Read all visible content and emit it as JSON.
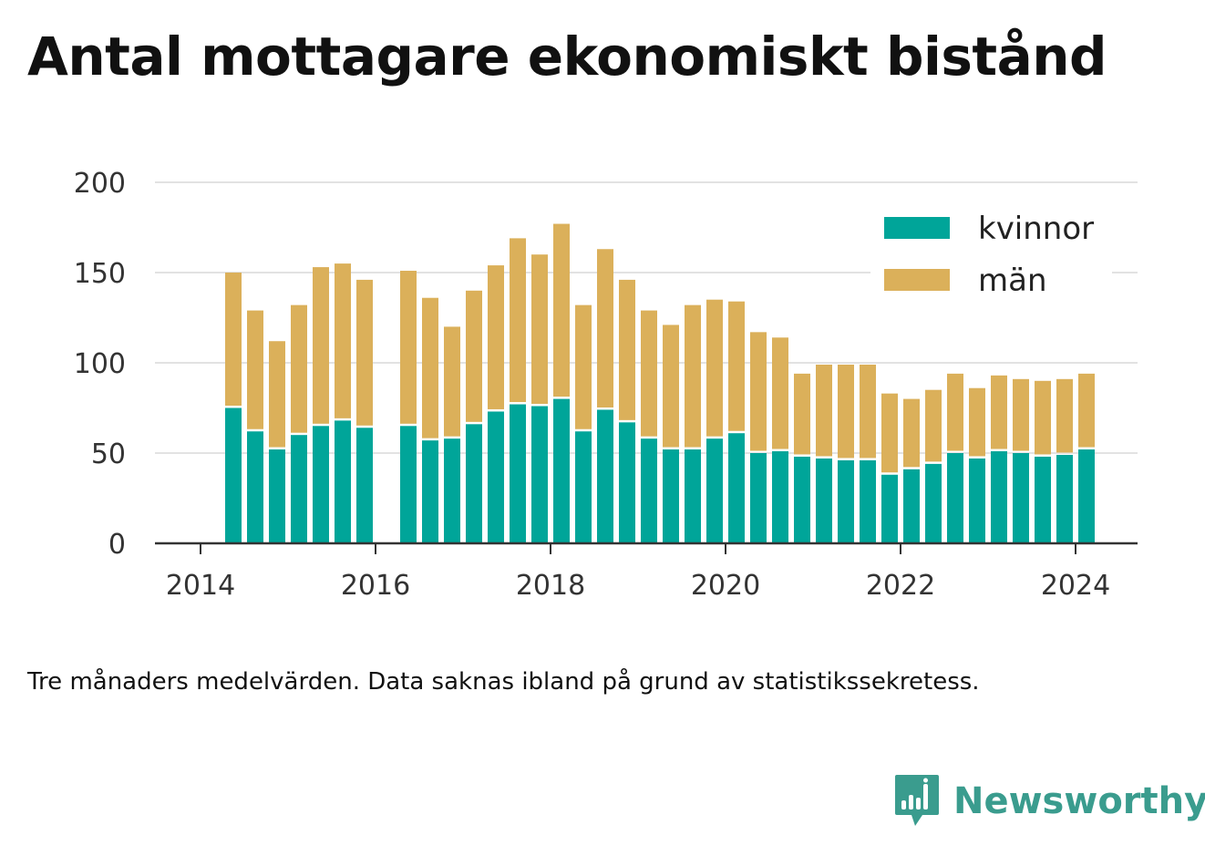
{
  "title": "Antal mottagare ekonomiskt bistånd",
  "note": "Tre månaders medelvärden. Data saknas ibland på grund av statistikssekretess.",
  "brand": "Newsworthy",
  "colors": {
    "kvinnor": "#00a599",
    "man": "#dbb05a",
    "grid": "#e2e2e2",
    "axis": "#333333"
  },
  "chart_data": {
    "type": "bar",
    "stacked": true,
    "x_unit": "quarter",
    "x": [
      "2014Q2",
      "2014Q3",
      "2014Q4",
      "2015Q1",
      "2015Q2",
      "2015Q3",
      "2015Q4",
      "2016Q1",
      "2016Q2",
      "2016Q3",
      "2016Q4",
      "2017Q1",
      "2017Q2",
      "2017Q3",
      "2017Q4",
      "2018Q1",
      "2018Q2",
      "2018Q3",
      "2018Q4",
      "2019Q1",
      "2019Q2",
      "2019Q3",
      "2019Q4",
      "2020Q1",
      "2020Q2",
      "2020Q3",
      "2020Q4",
      "2021Q1",
      "2021Q2",
      "2021Q3",
      "2021Q4",
      "2022Q1",
      "2022Q2",
      "2022Q3",
      "2022Q4",
      "2023Q1",
      "2023Q2",
      "2023Q3",
      "2023Q4",
      "2024Q1"
    ],
    "series": [
      {
        "name": "kvinnor",
        "values": [
          75,
          62,
          52,
          60,
          65,
          68,
          64,
          null,
          65,
          57,
          58,
          66,
          73,
          77,
          76,
          80,
          62,
          74,
          67,
          58,
          52,
          52,
          58,
          61,
          50,
          51,
          48,
          47,
          46,
          46,
          38,
          41,
          44,
          50,
          47,
          51,
          50,
          48,
          49,
          52
        ]
      },
      {
        "name": "män",
        "values": [
          75,
          67,
          60,
          72,
          88,
          87,
          82,
          null,
          86,
          79,
          62,
          74,
          81,
          92,
          84,
          97,
          70,
          89,
          79,
          71,
          69,
          80,
          77,
          73,
          67,
          63,
          46,
          52,
          53,
          53,
          45,
          39,
          41,
          44,
          39,
          42,
          41,
          42,
          42,
          42
        ]
      }
    ],
    "xticks": [
      "2014",
      "2016",
      "2018",
      "2020",
      "2022",
      "2024"
    ],
    "ylim": [
      0,
      200
    ],
    "yticks": [
      0,
      50,
      100,
      150,
      200
    ],
    "grid": true,
    "legend": {
      "position": "top-right",
      "entries": [
        "kvinnor",
        "män"
      ]
    }
  }
}
